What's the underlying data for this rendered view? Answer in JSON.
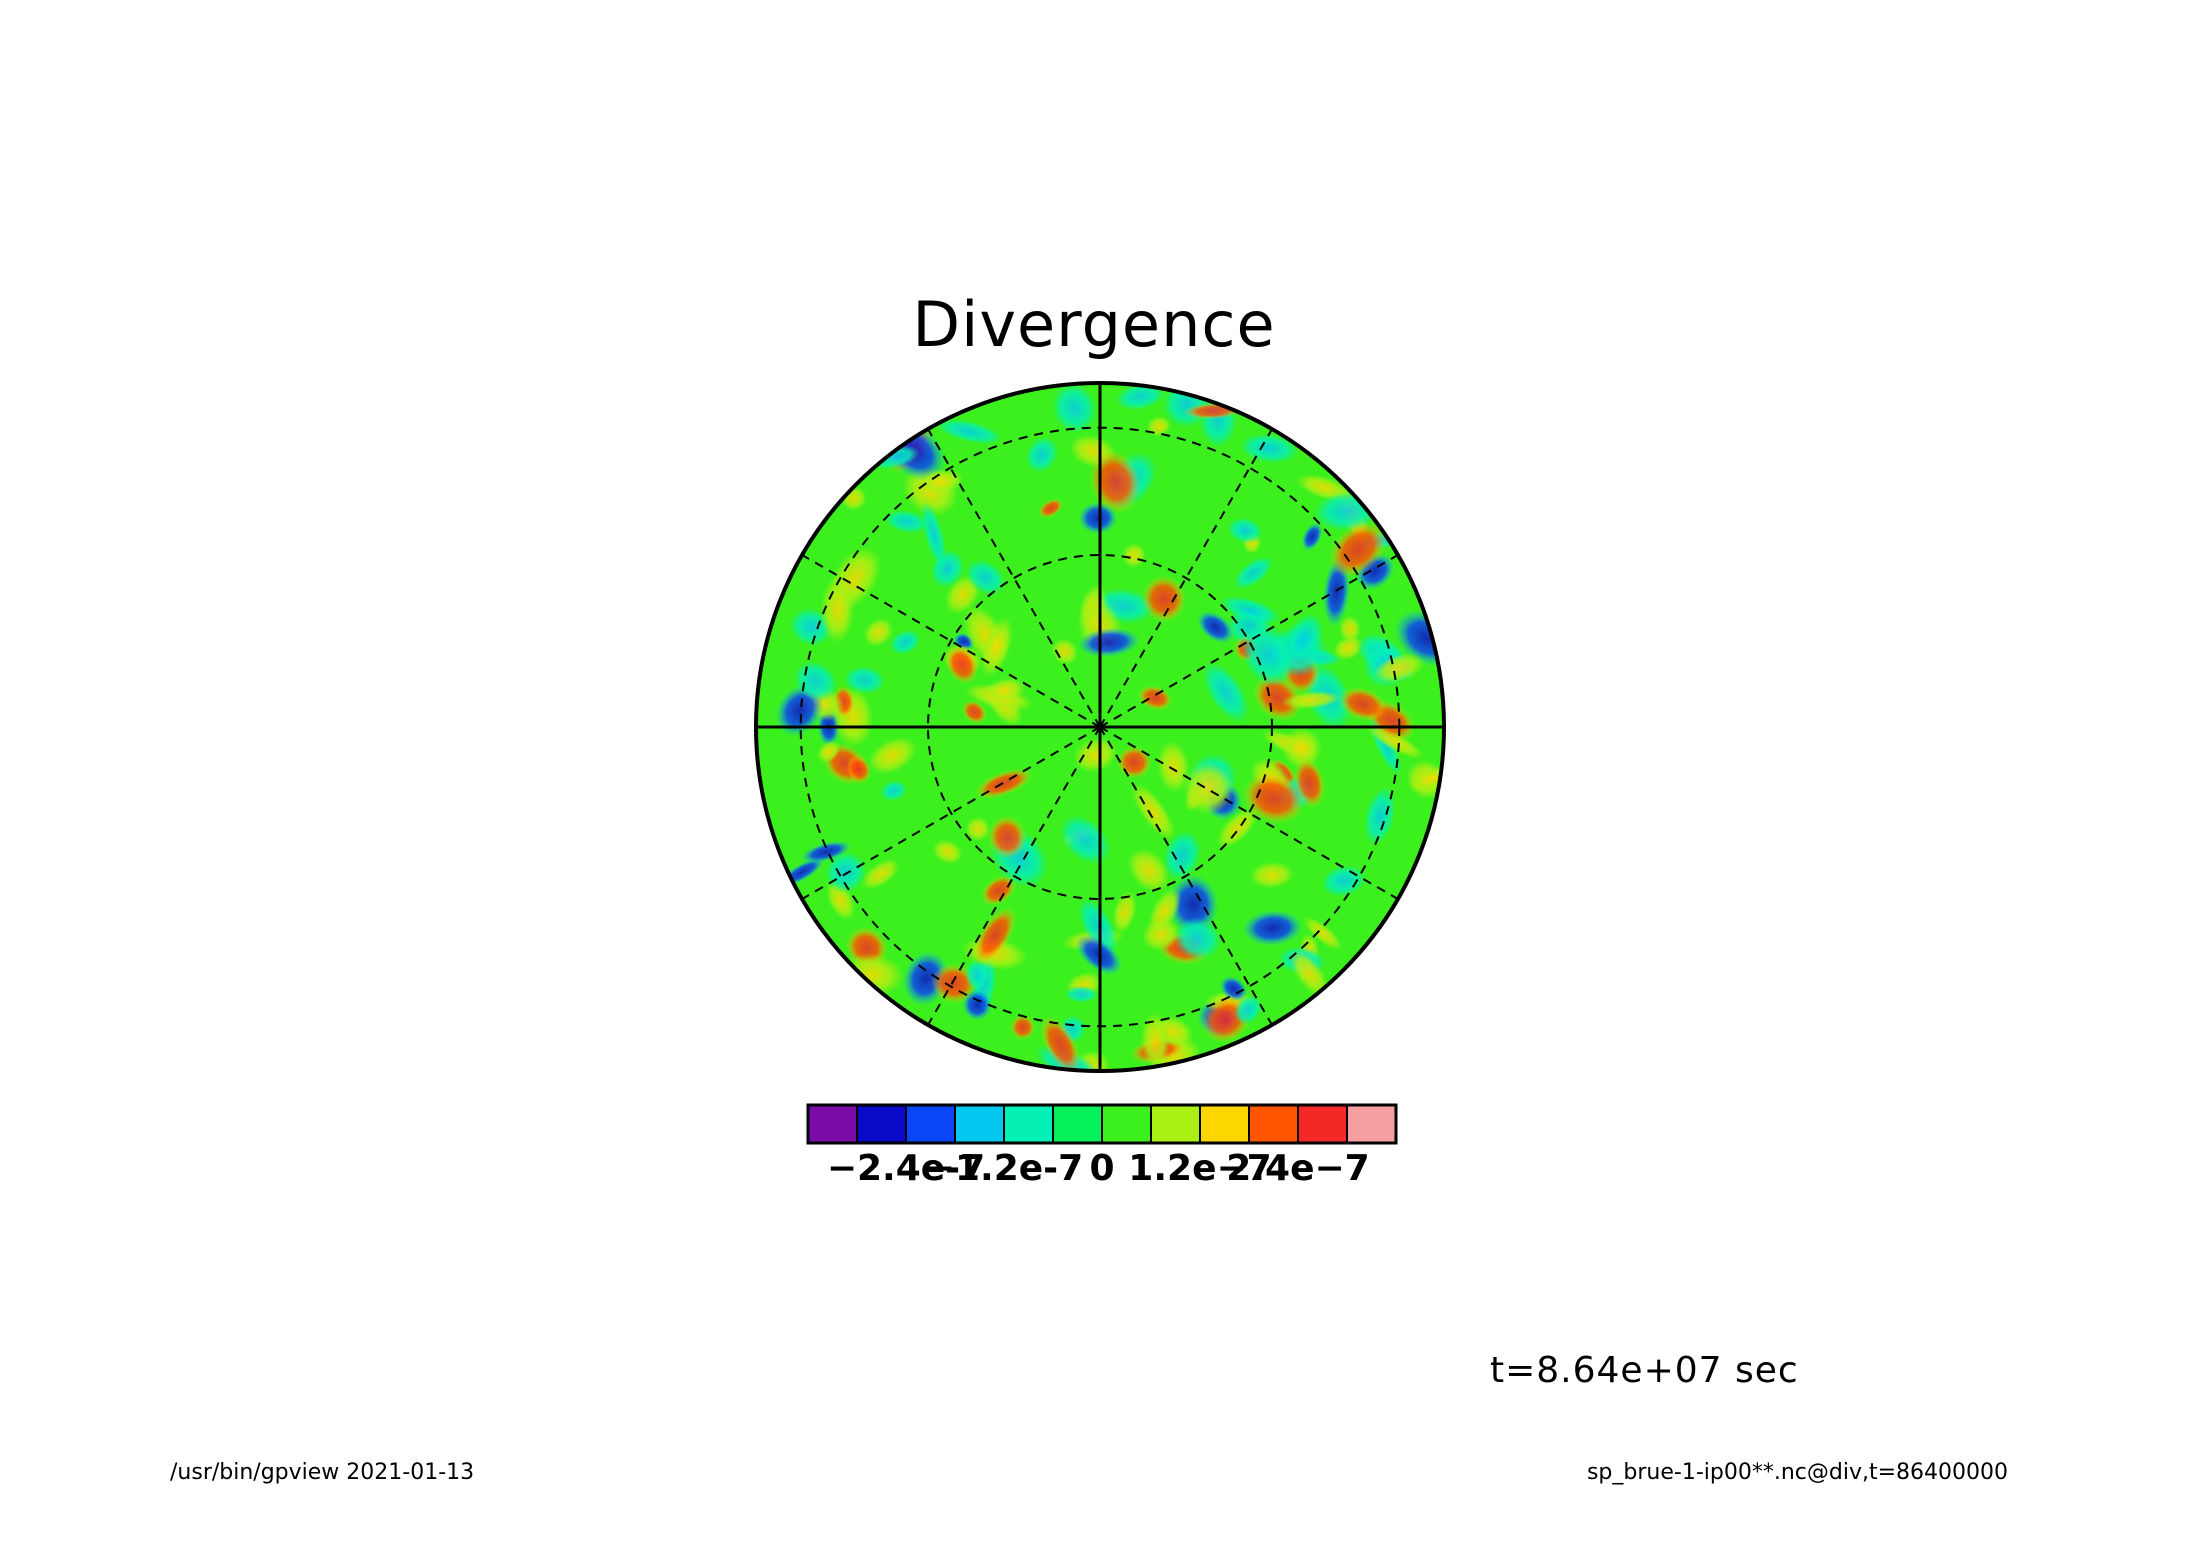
{
  "header": {
    "title": "Divergence"
  },
  "annotation": {
    "time": "t=8.64e+07 sec"
  },
  "footer": {
    "left": "/usr/bin/gpview  2021-01-13",
    "right": "sp_brue-1-ip00**.nc@div,t=86400000"
  },
  "chart_data": {
    "type": "heatmap",
    "title": "Divergence",
    "projection": "polar-orthographic",
    "grid": true,
    "colorbar": {
      "placement": "bottom",
      "tick_labels": [
        "-2.4e-7",
        "-1.2e-7",
        "0",
        "1.2e-7",
        "2.4e-7"
      ],
      "tick_values": [
        -2.4e-07,
        -1.2e-07,
        0,
        1.2e-07,
        2.4e-07
      ],
      "range": [
        -3.6e-07,
        3.6e-07
      ],
      "levels": 12,
      "colors": [
        "#7a0ca8",
        "#0a0ac8",
        "#0a46f5",
        "#05c8f0",
        "#05f0b4",
        "#05f05a",
        "#3cf01e",
        "#aaf014",
        "#ffd700",
        "#ff5500",
        "#f52828",
        "#f5a0a0"
      ]
    }
  }
}
